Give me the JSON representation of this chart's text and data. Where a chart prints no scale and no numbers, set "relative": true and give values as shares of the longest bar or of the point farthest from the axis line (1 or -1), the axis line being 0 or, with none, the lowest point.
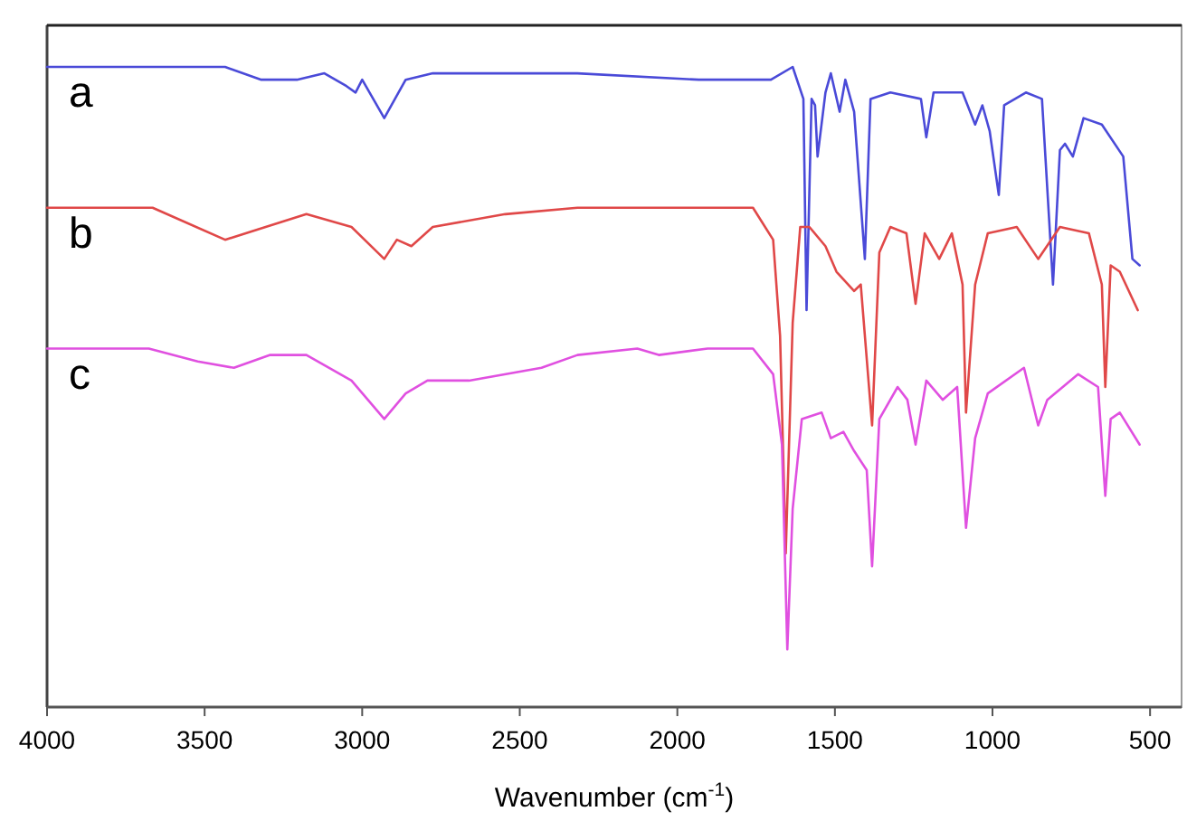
{
  "chart_data": {
    "type": "line",
    "xlabel": "Wavenumber (cm$^{-1}$)",
    "relative": true,
    "xlim": [
      4000,
      400
    ],
    "xticks": [
      4000,
      3500,
      3000,
      2500,
      2000,
      1500,
      1000,
      500
    ],
    "grid": false,
    "legend": false,
    "marker": "none",
    "line_style": "solid",
    "series": [
      {
        "name": "a",
        "color": "#4a4ad8",
        "x": [
          4000,
          3435,
          3320,
          3207,
          3120,
          3050,
          3021,
          3000,
          2930,
          2862,
          2776,
          2317,
          1932,
          1703,
          1634,
          1600,
          1590,
          1574,
          1563,
          1555,
          1530,
          1513,
          1485,
          1467,
          1439,
          1405,
          1387,
          1324,
          1227,
          1210,
          1187,
          1095,
          1055,
          1032,
          1009,
          980,
          963,
          894,
          843,
          808,
          786,
          770,
          745,
          711,
          653,
          585,
          556,
          533
        ],
        "values": [
          1.0,
          1.0,
          0.98,
          0.98,
          0.99,
          0.97,
          0.96,
          0.98,
          0.92,
          0.98,
          0.99,
          0.99,
          0.98,
          0.98,
          1.0,
          0.95,
          0.62,
          0.95,
          0.94,
          0.86,
          0.96,
          0.99,
          0.93,
          0.98,
          0.93,
          0.7,
          0.95,
          0.96,
          0.95,
          0.89,
          0.96,
          0.96,
          0.91,
          0.94,
          0.9,
          0.8,
          0.94,
          0.96,
          0.95,
          0.66,
          0.87,
          0.88,
          0.86,
          0.92,
          0.91,
          0.86,
          0.7,
          0.69
        ]
      },
      {
        "name": "b",
        "color": "#e04848",
        "x": [
          4000,
          3665,
          3435,
          3177,
          3034,
          2930,
          2890,
          2844,
          2776,
          2546,
          2317,
          1760,
          1696,
          1674,
          1656,
          1634,
          1610,
          1581,
          1530,
          1495,
          1439,
          1418,
          1382,
          1359,
          1324,
          1273,
          1244,
          1215,
          1169,
          1129,
          1095,
          1084,
          1055,
          1015,
          923,
          855,
          786,
          694,
          653,
          642,
          625,
          596,
          539
        ],
        "values": [
          0.78,
          0.78,
          0.73,
          0.77,
          0.75,
          0.7,
          0.73,
          0.72,
          0.75,
          0.77,
          0.78,
          0.78,
          0.73,
          0.58,
          0.24,
          0.6,
          0.75,
          0.75,
          0.72,
          0.68,
          0.65,
          0.66,
          0.44,
          0.71,
          0.75,
          0.74,
          0.63,
          0.74,
          0.7,
          0.74,
          0.66,
          0.46,
          0.66,
          0.74,
          0.75,
          0.7,
          0.75,
          0.74,
          0.66,
          0.5,
          0.69,
          0.68,
          0.62
        ]
      },
      {
        "name": "c",
        "color": "#e050e0",
        "x": [
          4000,
          3677,
          3522,
          3407,
          3292,
          3177,
          3034,
          2930,
          2862,
          2793,
          2661,
          2431,
          2317,
          2127,
          2059,
          1904,
          1760,
          1696,
          1668,
          1651,
          1634,
          1605,
          1542,
          1513,
          1473,
          1439,
          1399,
          1382,
          1359,
          1301,
          1270,
          1244,
          1210,
          1158,
          1112,
          1084,
          1055,
          1015,
          900,
          855,
          826,
          728,
          665,
          642,
          625,
          596,
          533
        ],
        "values": [
          0.56,
          0.56,
          0.54,
          0.53,
          0.55,
          0.55,
          0.51,
          0.45,
          0.49,
          0.51,
          0.51,
          0.53,
          0.55,
          0.56,
          0.55,
          0.56,
          0.56,
          0.52,
          0.41,
          0.09,
          0.31,
          0.45,
          0.46,
          0.42,
          0.43,
          0.4,
          0.37,
          0.22,
          0.45,
          0.5,
          0.48,
          0.41,
          0.51,
          0.48,
          0.5,
          0.28,
          0.42,
          0.49,
          0.53,
          0.44,
          0.48,
          0.52,
          0.5,
          0.33,
          0.45,
          0.46,
          0.41
        ]
      }
    ]
  }
}
